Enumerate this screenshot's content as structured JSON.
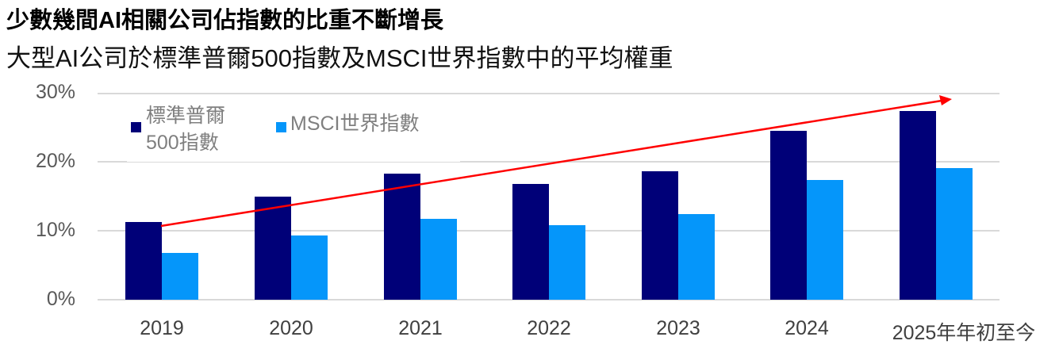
{
  "header": {
    "title": "少數幾間AI相關公司佔指數的比重不斷增長",
    "subtitle": "大型AI公司於標準普爾500指數及MSCI世界指數中的平均權重"
  },
  "legend": {
    "series1_line1": "標準普爾",
    "series1_line2": "500指數",
    "series2": "MSCI世界指數"
  },
  "yaxis": {
    "ticks": [
      "30%",
      "20%",
      "10%",
      "0%"
    ]
  },
  "xaxis": {
    "ticks": [
      "2019",
      "2020",
      "2021",
      "2022",
      "2023",
      "2024",
      "2025年年初至今"
    ]
  },
  "colors": {
    "sp500": "#000078",
    "msci": "#0596fa",
    "trend_arrow": "#ff0000",
    "grid": "#d9d9d9"
  },
  "chart_data": {
    "type": "bar",
    "title": "少數幾間AI相關公司佔指數的比重不斷增長",
    "subtitle": "大型AI公司於標準普爾500指數及MSCI世界指數中的平均權重",
    "categories": [
      "2019",
      "2020",
      "2021",
      "2022",
      "2023",
      "2024",
      "2025年年初至今"
    ],
    "series": [
      {
        "name": "標準普爾500指數",
        "color": "#000078",
        "values": [
          11.3,
          15.0,
          18.4,
          16.9,
          18.7,
          24.6,
          27.5
        ]
      },
      {
        "name": "MSCI世界指數",
        "color": "#0596fa",
        "values": [
          6.8,
          9.3,
          11.8,
          10.9,
          12.5,
          17.4,
          19.1
        ]
      }
    ],
    "xlabel": "",
    "ylabel": "",
    "ylim": [
      0,
      30
    ],
    "yticks": [
      "0%",
      "10%",
      "20%",
      "30%"
    ],
    "grid": true,
    "legend_position": "top-left inside",
    "annotations": [
      {
        "type": "arrow",
        "color": "#ff0000",
        "description": "Upward trend arrow from 2019 to 2025"
      }
    ]
  }
}
